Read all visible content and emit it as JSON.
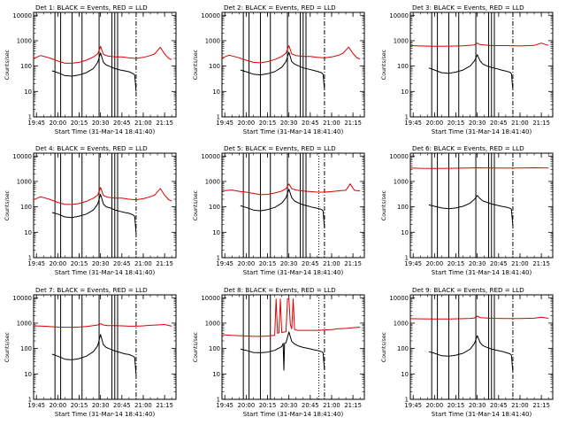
{
  "page": {
    "figure_title": "RHESSI detector count rates, 9 panels"
  },
  "colors": {
    "events": "#000000",
    "lld": "#dd0000",
    "axes": "#000000",
    "background": "#ffffff"
  },
  "common": {
    "ylabel": "Counts/sec",
    "xlabel": "Start Time (31-Mar-14 18:41:40)",
    "xtick_labels": [
      "19:45",
      "20:00",
      "20:15",
      "20:30",
      "20:45",
      "21:00",
      "21:15"
    ],
    "xtick_minutes": [
      -15,
      0,
      15,
      30,
      45,
      60,
      75
    ],
    "xlim_minutes": [
      -17,
      83
    ],
    "ytick_labels": [
      "1",
      "10",
      "100",
      "1000",
      "10000"
    ],
    "ylim": [
      1,
      13000
    ],
    "note": "x in minutes after 20:00 UT"
  },
  "chart_data": [
    {
      "type": "line",
      "title": "Det 1: BLACK = Events, RED = LLD",
      "xlabel": "Start Time (31-Mar-14 18:41:40)",
      "ylabel": "Counts/sec",
      "vlines_solid": [
        -2,
        2,
        10,
        17,
        29,
        38,
        40,
        42
      ],
      "vlines_dashdot": [
        55
      ],
      "vlines_dotted": [],
      "vlines_dashed": [],
      "series": [
        {
          "name": "Events (black)",
          "x": [
            -4,
            0,
            5,
            10,
            15,
            20,
            25,
            28,
            30,
            32,
            34,
            37,
            40,
            44,
            47,
            50,
            53,
            54,
            55
          ],
          "y": [
            65,
            55,
            42,
            40,
            45,
            55,
            80,
            140,
            330,
            140,
            110,
            95,
            80,
            70,
            65,
            60,
            50,
            45,
            10
          ]
        },
        {
          "name": "LLD (red)",
          "x": [
            -17,
            -12,
            -6,
            0,
            5,
            10,
            15,
            20,
            25,
            28,
            30,
            32,
            35,
            40,
            45,
            50,
            55,
            60,
            65,
            68,
            72,
            75,
            78,
            80
          ],
          "y": [
            200,
            260,
            210,
            160,
            130,
            130,
            140,
            170,
            230,
            300,
            600,
            290,
            250,
            230,
            230,
            210,
            200,
            220,
            260,
            300,
            550,
            300,
            200,
            180
          ]
        }
      ]
    },
    {
      "type": "line",
      "title": "Det 2: BLACK = Events, RED = LLD",
      "xlabel": "Start Time (31-Mar-14 18:41:40)",
      "ylabel": "Counts/sec",
      "vlines_solid": [
        -2,
        2,
        10,
        17,
        29,
        38,
        40,
        42
      ],
      "vlines_dashdot": [
        55
      ],
      "vlines_dotted": [],
      "vlines_dashed": [],
      "series": [
        {
          "name": "Events (black)",
          "x": [
            -4,
            0,
            5,
            10,
            15,
            20,
            25,
            28,
            30,
            32,
            34,
            37,
            40,
            44,
            47,
            50,
            53,
            54,
            55
          ],
          "y": [
            70,
            60,
            48,
            45,
            50,
            60,
            90,
            150,
            350,
            150,
            120,
            100,
            85,
            75,
            68,
            62,
            55,
            48,
            12
          ]
        },
        {
          "name": "LLD (red)",
          "x": [
            -17,
            -12,
            -6,
            0,
            5,
            10,
            15,
            20,
            25,
            28,
            30,
            32,
            35,
            40,
            45,
            50,
            55,
            60,
            65,
            68,
            72,
            75,
            78,
            80
          ],
          "y": [
            210,
            270,
            220,
            170,
            140,
            135,
            150,
            180,
            240,
            320,
            640,
            300,
            260,
            240,
            240,
            220,
            210,
            230,
            270,
            320,
            560,
            310,
            210,
            190
          ]
        }
      ]
    },
    {
      "type": "line",
      "title": "Det 3: BLACK = Events, RED = LLD",
      "xlabel": "Start Time (31-Mar-14 18:41:40)",
      "ylabel": "Counts/sec",
      "vlines_solid": [
        -2,
        2,
        10,
        17,
        29,
        38,
        40,
        42
      ],
      "vlines_dashdot": [
        55
      ],
      "vlines_dotted": [],
      "vlines_dashed": [],
      "series": [
        {
          "name": "Events (black)",
          "x": [
            -4,
            0,
            5,
            10,
            15,
            20,
            25,
            28,
            30,
            32,
            34,
            37,
            40,
            44,
            47,
            50,
            53,
            54,
            55
          ],
          "y": [
            85,
            70,
            55,
            52,
            58,
            70,
            100,
            160,
            280,
            160,
            120,
            100,
            88,
            78,
            70,
            64,
            57,
            50,
            12
          ]
        },
        {
          "name": "LLD (red)",
          "x": [
            -17,
            -10,
            0,
            10,
            20,
            28,
            30,
            32,
            40,
            50,
            60,
            70,
            75,
            80
          ],
          "y": [
            640,
            620,
            600,
            610,
            630,
            680,
            800,
            700,
            640,
            640,
            620,
            650,
            800,
            650
          ]
        }
      ]
    },
    {
      "type": "line",
      "title": "Det 4: BLACK = Events, RED = LLD",
      "xlabel": "Start Time (31-Mar-14 18:41:40)",
      "ylabel": "Counts/sec",
      "vlines_solid": [
        -2,
        2,
        10,
        17,
        29,
        38,
        40,
        42
      ],
      "vlines_dashdot": [
        55
      ],
      "vlines_dotted": [],
      "vlines_dashed": [],
      "series": [
        {
          "name": "Events (black)",
          "x": [
            -4,
            0,
            5,
            10,
            15,
            20,
            25,
            28,
            30,
            32,
            34,
            37,
            40,
            44,
            47,
            50,
            53,
            54,
            55
          ],
          "y": [
            60,
            52,
            40,
            38,
            43,
            52,
            75,
            130,
            310,
            130,
            100,
            90,
            76,
            66,
            60,
            56,
            48,
            42,
            9
          ]
        },
        {
          "name": "LLD (red)",
          "x": [
            -17,
            -12,
            -6,
            0,
            5,
            10,
            15,
            20,
            25,
            28,
            30,
            32,
            35,
            40,
            45,
            50,
            55,
            60,
            65,
            68,
            72,
            75,
            78,
            80
          ],
          "y": [
            190,
            250,
            200,
            150,
            125,
            125,
            135,
            165,
            220,
            290,
            580,
            280,
            240,
            220,
            220,
            200,
            190,
            210,
            250,
            290,
            530,
            290,
            190,
            170
          ]
        }
      ]
    },
    {
      "type": "line",
      "title": "Det 5: BLACK = Events, RED = LLD",
      "xlabel": "Start Time (31-Mar-14 18:41:40)",
      "ylabel": "Counts/sec",
      "vlines_solid": [
        -2,
        2,
        10,
        17,
        29,
        38,
        40,
        42
      ],
      "vlines_dashdot": [
        55
      ],
      "vlines_dotted": [
        51
      ],
      "vlines_dashed": [],
      "series": [
        {
          "name": "Events (black)",
          "x": [
            -4,
            0,
            5,
            10,
            15,
            20,
            25,
            28,
            30,
            32,
            34,
            37,
            40,
            44,
            47,
            50,
            53,
            54,
            55
          ],
          "y": [
            110,
            95,
            75,
            70,
            78,
            95,
            140,
            230,
            500,
            230,
            170,
            140,
            120,
            105,
            95,
            88,
            78,
            70,
            15
          ]
        },
        {
          "name": "LLD (red)",
          "x": [
            -17,
            -10,
            -4,
            0,
            5,
            10,
            15,
            20,
            25,
            28,
            30,
            32,
            35,
            40,
            45,
            50,
            55,
            60,
            65,
            70,
            73,
            76,
            80
          ],
          "y": [
            430,
            460,
            400,
            380,
            340,
            300,
            310,
            350,
            420,
            520,
            800,
            520,
            460,
            420,
            400,
            380,
            380,
            400,
            430,
            450,
            800,
            450,
            420
          ]
        }
      ]
    },
    {
      "type": "line",
      "title": "Det 6: BLACK = Events, RED = LLD",
      "xlabel": "Start Time (31-Mar-14 18:41:40)",
      "ylabel": "Counts/sec",
      "vlines_solid": [
        -2,
        2,
        10,
        17,
        29,
        38,
        40,
        42
      ],
      "vlines_dashdot": [
        55
      ],
      "vlines_dotted": [],
      "vlines_dashed": [],
      "series": [
        {
          "name": "Events (black)",
          "x": [
            -4,
            0,
            5,
            10,
            15,
            20,
            25,
            28,
            30,
            32,
            34,
            37,
            40,
            44,
            47,
            50,
            53,
            54,
            55
          ],
          "y": [
            120,
            105,
            90,
            85,
            90,
            105,
            140,
            200,
            280,
            210,
            170,
            150,
            130,
            115,
            105,
            98,
            88,
            80,
            18
          ]
        },
        {
          "name": "LLD (red)",
          "x": [
            -17,
            -10,
            0,
            10,
            20,
            30,
            40,
            50,
            60,
            70,
            80
          ],
          "y": [
            3400,
            3300,
            3250,
            3300,
            3350,
            3450,
            3400,
            3350,
            3400,
            3450,
            3400
          ]
        }
      ]
    },
    {
      "type": "line",
      "title": "Det 7: BLACK = Events, RED = LLD",
      "xlabel": "Start Time (31-Mar-14 18:41:40)",
      "ylabel": "Counts/sec",
      "vlines_solid": [
        -2,
        2,
        10,
        17,
        29,
        38,
        40,
        42
      ],
      "vlines_dashdot": [
        55
      ],
      "vlines_dotted": [],
      "vlines_dashed": [],
      "series": [
        {
          "name": "Events (black)",
          "x": [
            -4,
            0,
            5,
            10,
            15,
            20,
            25,
            28,
            30,
            32,
            34,
            37,
            40,
            44,
            47,
            50,
            53,
            54,
            55
          ],
          "y": [
            60,
            50,
            38,
            36,
            40,
            50,
            75,
            130,
            360,
            140,
            110,
            95,
            80,
            70,
            62,
            58,
            50,
            44,
            9
          ]
        },
        {
          "name": "LLD (red)",
          "x": [
            -17,
            -10,
            -4,
            0,
            5,
            10,
            15,
            20,
            25,
            28,
            30,
            32,
            35,
            40,
            45,
            50,
            55,
            60,
            65,
            70,
            75,
            80
          ],
          "y": [
            780,
            760,
            720,
            700,
            690,
            690,
            700,
            740,
            800,
            850,
            950,
            850,
            800,
            800,
            780,
            760,
            760,
            780,
            820,
            850,
            880,
            760
          ]
        }
      ]
    },
    {
      "type": "line",
      "title": "Det 8: BLACK = Events, RED = LLD",
      "xlabel": "Start Time (31-Mar-14 18:41:40)",
      "ylabel": "Counts/sec",
      "vlines_solid": [
        -2,
        2,
        10,
        17
      ],
      "vlines_dashdot": [
        55
      ],
      "vlines_dotted": [
        51
      ],
      "vlines_dashed": [],
      "series": [
        {
          "name": "Events (black)",
          "x": [
            -4,
            0,
            5,
            10,
            15,
            20,
            25,
            26,
            26.5,
            27,
            28,
            30,
            32,
            34,
            37,
            40,
            44,
            47,
            50,
            53,
            54,
            55
          ],
          "y": [
            95,
            85,
            70,
            68,
            72,
            85,
            120,
            160,
            14,
            160,
            170,
            450,
            190,
            150,
            125,
            110,
            100,
            90,
            84,
            75,
            68,
            14
          ]
        },
        {
          "name": "LLD (red)",
          "x": [
            -17,
            -10,
            -5,
            0,
            5,
            10,
            15,
            20,
            21,
            22,
            23,
            24,
            25,
            28,
            29,
            30,
            31,
            32,
            33,
            34,
            36,
            40,
            45,
            50,
            55,
            60,
            65,
            70,
            75,
            80
          ],
          "y": [
            350,
            330,
            320,
            310,
            300,
            300,
            310,
            330,
            9000,
            400,
            420,
            9000,
            430,
            460,
            9000,
            9000,
            900,
            600,
            9000,
            560,
            520,
            520,
            520,
            520,
            540,
            560,
            600,
            620,
            660,
            700
          ]
        }
      ]
    },
    {
      "type": "line",
      "title": "Det 9: BLACK = Events, RED = LLD",
      "xlabel": "Start Time (31-Mar-14 18:41:40)",
      "ylabel": "Counts/sec",
      "vlines_solid": [
        -2,
        2,
        10,
        17,
        29,
        38,
        40,
        42
      ],
      "vlines_dashdot": [
        55
      ],
      "vlines_dotted": [],
      "vlines_dashed": [],
      "series": [
        {
          "name": "Events (black)",
          "x": [
            -4,
            0,
            5,
            10,
            15,
            20,
            25,
            28,
            30,
            32,
            34,
            37,
            40,
            44,
            47,
            50,
            53,
            54,
            55
          ],
          "y": [
            75,
            65,
            52,
            50,
            55,
            65,
            95,
            160,
            320,
            170,
            130,
            110,
            95,
            85,
            78,
            70,
            62,
            55,
            12
          ]
        },
        {
          "name": "LLD (red)",
          "x": [
            -17,
            -10,
            0,
            10,
            20,
            25,
            28,
            30,
            32,
            40,
            50,
            60,
            70,
            75,
            80
          ],
          "y": [
            1500,
            1480,
            1450,
            1460,
            1500,
            1540,
            1600,
            1900,
            1650,
            1550,
            1520,
            1520,
            1560,
            1700,
            1550
          ]
        }
      ]
    }
  ]
}
